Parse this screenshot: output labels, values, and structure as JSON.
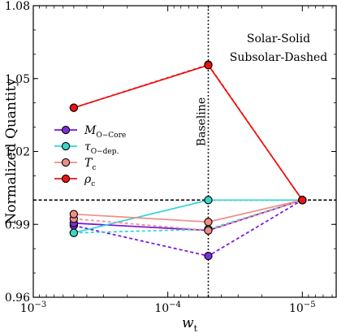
{
  "chart_data": {
    "type": "line",
    "xlabel_base": "w",
    "xlabel_sub": "t",
    "ylabel": "Normalized Quantity",
    "x_scale": "log-reversed",
    "xlim": [
      0.001,
      5.6e-06
    ],
    "ylim": [
      0.96,
      1.08
    ],
    "x_ticks": [
      {
        "value": 0.001,
        "base": "10",
        "exp": "−3"
      },
      {
        "value": 0.0001,
        "base": "10",
        "exp": "−4"
      },
      {
        "value": 1e-05,
        "base": "10",
        "exp": "−5"
      }
    ],
    "y_ticks": [
      {
        "value": 0.96,
        "label": "0.96"
      },
      {
        "value": 0.99,
        "label": "0.99"
      },
      {
        "value": 1.02,
        "label": "1.02"
      },
      {
        "value": 1.05,
        "label": "1.05"
      },
      {
        "value": 1.08,
        "label": "1.08"
      }
    ],
    "reference_lines": {
      "baseline_x": 5e-05,
      "baseline_label": "Baseline",
      "unity_y": 1.0
    },
    "annotation": [
      "Solar-Solid",
      "Subsolar-Dashed"
    ],
    "x": [
      0.0005,
      5e-05,
      1e-05
    ],
    "series": [
      {
        "key": "M_core",
        "name": "M",
        "sub": "O−Core",
        "sym": "",
        "line_color": "#7b0fe0",
        "marker_color": "#7b2fd8",
        "solar": [
          0.9905,
          0.9875,
          1.0
        ],
        "subsolar": [
          0.9895,
          0.977,
          1.0
        ]
      },
      {
        "key": "tau",
        "name": "τ",
        "sub": "O−dep.",
        "sym": "greek",
        "line_color": "#2fd6d6",
        "marker_color": "#3ad6cc",
        "solar": [
          0.9865,
          1.0,
          1.0
        ],
        "subsolar": [
          0.9865,
          0.988,
          1.0
        ]
      },
      {
        "key": "Tc",
        "name": "T",
        "sub": "c",
        "sym": "",
        "line_color": "#f08e86",
        "marker_color": "#f08e86",
        "solar": [
          0.9942,
          0.991,
          1.0
        ],
        "subsolar": [
          0.9923,
          0.9875,
          1.0
        ]
      },
      {
        "key": "rho_c",
        "name": "ρ",
        "sub": "c",
        "sym": "greek",
        "line_color": "#ee1111",
        "marker_color": "#ee1111",
        "solar": [
          1.038,
          1.0555,
          1.0
        ],
        "subsolar": [
          1.038,
          1.0557,
          1.0
        ]
      }
    ],
    "legend_position": "center-left",
    "grid": false
  }
}
